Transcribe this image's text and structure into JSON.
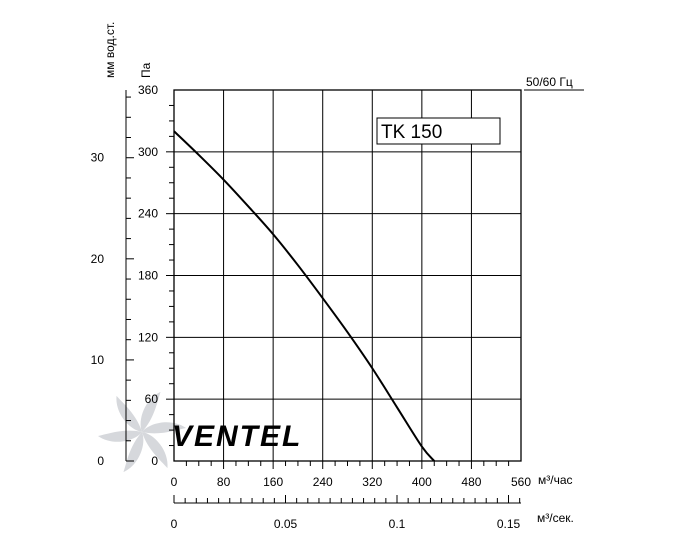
{
  "chart_data": {
    "type": "line",
    "model_label": "TK 150",
    "frequency_label": "50/60 Гц",
    "watermark": "VENTEL",
    "colors": {
      "curve": "#000000",
      "grid": "#000000",
      "watermark": "#d6d8dc"
    },
    "y_left_pa": {
      "label": "Па",
      "range": [
        0,
        360
      ],
      "ticks": [
        "0",
        "60",
        "120",
        "180",
        "240",
        "300",
        "360"
      ]
    },
    "y_left_mm": {
      "label": "мм вод.ст.",
      "range": [
        0,
        36.7
      ],
      "ticks": [
        "0",
        "10",
        "20",
        "30"
      ]
    },
    "x_m3h": {
      "label": "м³/час",
      "range": [
        0,
        560
      ],
      "ticks": [
        "0",
        "80",
        "160",
        "240",
        "320",
        "400",
        "480",
        "560"
      ]
    },
    "x_m3s": {
      "label": "м³/сек.",
      "range": [
        0,
        0.1556
      ],
      "ticks": [
        "0",
        "0.05",
        "0.1",
        "0.15"
      ]
    },
    "grid": true,
    "series": [
      {
        "x": [
          0,
          40,
          80,
          120,
          160,
          200,
          240,
          280,
          320,
          360,
          400,
          420
        ],
        "y": [
          320,
          297,
          273,
          247,
          220,
          190,
          158,
          125,
          90,
          52,
          14,
          0
        ]
      }
    ]
  }
}
